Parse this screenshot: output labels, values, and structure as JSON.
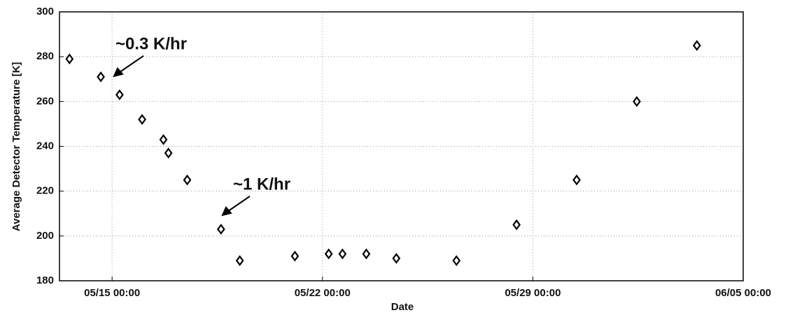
{
  "chart_data": {
    "type": "scatter",
    "x_label": "Date",
    "y_label": "Average Detector Temperature [K]",
    "x": [
      "05/13 14:00",
      "05/14 15:00",
      "05/15 06:00",
      "05/16 00:00",
      "05/16 17:00",
      "05/16 21:00",
      "05/17 12:00",
      "05/18 15:00",
      "05/19 06:00",
      "05/21 02:00",
      "05/22 05:00",
      "05/22 16:00",
      "05/23 11:00",
      "05/24 11:00",
      "05/26 11:00",
      "05/28 11:00",
      "05/30 11:00",
      "06/01 11:00",
      "06/03 11:00"
    ],
    "values": [
      279,
      271,
      263,
      252,
      243,
      237,
      225,
      203,
      189,
      191,
      192,
      192,
      192,
      190,
      189,
      205,
      225,
      260,
      285
    ],
    "color": "#000000",
    "marker": "diamond",
    "xlim": [
      "05/13 06:00",
      "06/05 00:00"
    ],
    "xticks": [
      "05/15 00:00",
      "05/22 00:00",
      "05/29 00:00",
      "06/05 00:00"
    ],
    "ylim": [
      180,
      300
    ],
    "yticks": [
      180,
      200,
      220,
      240,
      260,
      280,
      300
    ],
    "grid": true,
    "annotations": [
      "~0.3 K/hr",
      "~1 K/hr"
    ]
  }
}
